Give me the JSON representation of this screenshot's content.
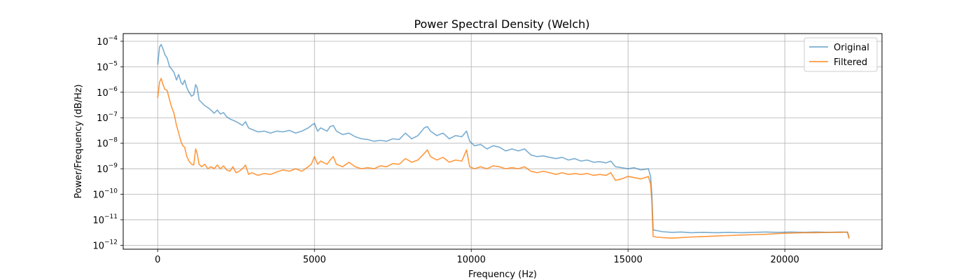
{
  "chart_data": {
    "type": "line",
    "title": "Power Spectral Density (Welch)",
    "xlabel": "Frequency (Hz)",
    "ylabel": "Power/Frequency (dB/Hz)",
    "xlim": [
      -1100,
      23100
    ],
    "ylim": [
      7e-13,
      0.0002
    ],
    "yscale": "log",
    "grid": true,
    "legend": "top-right",
    "xticks": [
      0,
      5000,
      10000,
      15000,
      20000
    ],
    "xtick_labels": [
      "0",
      "5000",
      "10000",
      "15000",
      "20000"
    ],
    "yticks": [
      {
        "base": "10",
        "exp": "−12",
        "value": 1e-12
      },
      {
        "base": "10",
        "exp": "−11",
        "value": 1e-11
      },
      {
        "base": "10",
        "exp": "−10",
        "value": 1e-10
      },
      {
        "base": "10",
        "exp": "−9",
        "value": 1e-09
      },
      {
        "base": "10",
        "exp": "−8",
        "value": 1e-08
      },
      {
        "base": "10",
        "exp": "−7",
        "value": 1e-07
      },
      {
        "base": "10",
        "exp": "−6",
        "value": 1e-06
      },
      {
        "base": "10",
        "exp": "−5",
        "value": 1e-05
      },
      {
        "base": "10",
        "exp": "−4",
        "value": 0.0001
      }
    ],
    "series": [
      {
        "name": "Original",
        "color": "#1f77b4",
        "opacity": 0.6,
        "points": [
          [
            0,
            1.2e-05
          ],
          [
            60,
            6e-05
          ],
          [
            110,
            7.5e-05
          ],
          [
            170,
            5e-05
          ],
          [
            230,
            3e-05
          ],
          [
            300,
            2.2e-05
          ],
          [
            380,
            1e-05
          ],
          [
            450,
            8e-06
          ],
          [
            520,
            6e-06
          ],
          [
            600,
            3e-06
          ],
          [
            670,
            5e-06
          ],
          [
            740,
            2.5e-06
          ],
          [
            800,
            2e-06
          ],
          [
            860,
            3e-06
          ],
          [
            930,
            1.5e-06
          ],
          [
            1000,
            1e-06
          ],
          [
            1080,
            7e-07
          ],
          [
            1150,
            8e-07
          ],
          [
            1210,
            2e-06
          ],
          [
            1260,
            1.5e-06
          ],
          [
            1320,
            5e-07
          ],
          [
            1400,
            4e-07
          ],
          [
            1500,
            3e-07
          ],
          [
            1600,
            2.5e-07
          ],
          [
            1700,
            2e-07
          ],
          [
            1800,
            1.5e-07
          ],
          [
            1900,
            2e-07
          ],
          [
            2000,
            1.4e-07
          ],
          [
            2100,
            1.6e-07
          ],
          [
            2200,
            1.1e-07
          ],
          [
            2300,
            9e-08
          ],
          [
            2400,
            8e-08
          ],
          [
            2500,
            7e-08
          ],
          [
            2600,
            6e-08
          ],
          [
            2700,
            5e-08
          ],
          [
            2800,
            7e-08
          ],
          [
            2900,
            4e-08
          ],
          [
            3000,
            3.5e-08
          ],
          [
            3200,
            2.8e-08
          ],
          [
            3400,
            3e-08
          ],
          [
            3600,
            2.5e-08
          ],
          [
            3800,
            3e-08
          ],
          [
            4000,
            2.8e-08
          ],
          [
            4200,
            3.2e-08
          ],
          [
            4400,
            2.5e-08
          ],
          [
            4600,
            3e-08
          ],
          [
            4800,
            4e-08
          ],
          [
            4900,
            5e-08
          ],
          [
            5000,
            6e-08
          ],
          [
            5100,
            3e-08
          ],
          [
            5200,
            4e-08
          ],
          [
            5400,
            3e-08
          ],
          [
            5500,
            4.5e-08
          ],
          [
            5600,
            5e-08
          ],
          [
            5700,
            3e-08
          ],
          [
            5900,
            2.2e-08
          ],
          [
            6100,
            2.5e-08
          ],
          [
            6300,
            1.8e-08
          ],
          [
            6500,
            1.5e-08
          ],
          [
            6700,
            1.4e-08
          ],
          [
            6900,
            1.2e-08
          ],
          [
            7100,
            1.3e-08
          ],
          [
            7300,
            1.2e-08
          ],
          [
            7500,
            1.5e-08
          ],
          [
            7700,
            1.4e-08
          ],
          [
            7900,
            2.5e-08
          ],
          [
            8100,
            1.5e-08
          ],
          [
            8300,
            2e-08
          ],
          [
            8500,
            4e-08
          ],
          [
            8600,
            4.5e-08
          ],
          [
            8700,
            3e-08
          ],
          [
            8900,
            2e-08
          ],
          [
            9100,
            2.5e-08
          ],
          [
            9300,
            1.5e-08
          ],
          [
            9500,
            2e-08
          ],
          [
            9700,
            1.8e-08
          ],
          [
            9850,
            3e-08
          ],
          [
            9950,
            1.2e-08
          ],
          [
            10100,
            8e-09
          ],
          [
            10300,
            9e-09
          ],
          [
            10500,
            6e-09
          ],
          [
            10700,
            8e-09
          ],
          [
            10900,
            7e-09
          ],
          [
            11100,
            5e-09
          ],
          [
            11300,
            6e-09
          ],
          [
            11500,
            5e-09
          ],
          [
            11700,
            6e-09
          ],
          [
            11900,
            3.5e-09
          ],
          [
            12100,
            3e-09
          ],
          [
            12300,
            3.2e-09
          ],
          [
            12500,
            2.8e-09
          ],
          [
            12700,
            2.5e-09
          ],
          [
            12900,
            2.8e-09
          ],
          [
            13100,
            2.2e-09
          ],
          [
            13300,
            2.5e-09
          ],
          [
            13500,
            2e-09
          ],
          [
            13700,
            2.2e-09
          ],
          [
            13900,
            1.8e-09
          ],
          [
            14100,
            1.9e-09
          ],
          [
            14300,
            1.7e-09
          ],
          [
            14450,
            2e-09
          ],
          [
            14600,
            1.2e-09
          ],
          [
            14800,
            1.1e-09
          ],
          [
            15000,
            1e-09
          ],
          [
            15200,
            1.1e-09
          ],
          [
            15400,
            9e-10
          ],
          [
            15550,
            9.5e-10
          ],
          [
            15650,
            1e-09
          ],
          [
            15720,
            5e-10
          ],
          [
            15760,
            1e-10
          ],
          [
            15800,
            4e-12
          ],
          [
            15900,
            3.8e-12
          ],
          [
            16100,
            3.4e-12
          ],
          [
            16400,
            3.2e-12
          ],
          [
            16700,
            3.3e-12
          ],
          [
            17000,
            3.1e-12
          ],
          [
            17400,
            3.2e-12
          ],
          [
            17800,
            3.1e-12
          ],
          [
            18200,
            3.2e-12
          ],
          [
            18600,
            3.1e-12
          ],
          [
            19000,
            3.2e-12
          ],
          [
            19400,
            3.3e-12
          ],
          [
            19800,
            3.2e-12
          ],
          [
            20200,
            3.3e-12
          ],
          [
            20600,
            3.2e-12
          ],
          [
            21000,
            3.3e-12
          ],
          [
            21400,
            3.2e-12
          ],
          [
            21800,
            3.3e-12
          ],
          [
            22000,
            3.2e-12
          ],
          [
            22050,
            2e-12
          ]
        ]
      },
      {
        "name": "Filtered",
        "color": "#ff7f0e",
        "opacity": 0.8,
        "points": [
          [
            0,
            6e-07
          ],
          [
            60,
            2.5e-06
          ],
          [
            110,
            3.5e-06
          ],
          [
            170,
            2e-06
          ],
          [
            230,
            1.3e-06
          ],
          [
            300,
            1.2e-06
          ],
          [
            380,
            5e-07
          ],
          [
            450,
            2.5e-07
          ],
          [
            520,
            1.5e-07
          ],
          [
            600,
            5e-08
          ],
          [
            670,
            2.5e-08
          ],
          [
            740,
            1.2e-08
          ],
          [
            800,
            8e-09
          ],
          [
            860,
            7e-09
          ],
          [
            930,
            3e-09
          ],
          [
            1000,
            2e-09
          ],
          [
            1080,
            1.5e-09
          ],
          [
            1150,
            1.4e-09
          ],
          [
            1210,
            6e-09
          ],
          [
            1260,
            4e-09
          ],
          [
            1320,
            1.5e-09
          ],
          [
            1400,
            1.2e-09
          ],
          [
            1500,
            1.5e-09
          ],
          [
            1600,
            1e-09
          ],
          [
            1700,
            1.2e-09
          ],
          [
            1800,
            1e-09
          ],
          [
            1900,
            1.4e-09
          ],
          [
            2000,
            1e-09
          ],
          [
            2100,
            1.3e-09
          ],
          [
            2200,
            9e-10
          ],
          [
            2300,
            8e-10
          ],
          [
            2400,
            1.2e-09
          ],
          [
            2500,
            7e-10
          ],
          [
            2600,
            8e-10
          ],
          [
            2700,
            1e-09
          ],
          [
            2800,
            1.4e-09
          ],
          [
            2900,
            6e-10
          ],
          [
            3000,
            7e-10
          ],
          [
            3200,
            5.5e-10
          ],
          [
            3400,
            6.5e-10
          ],
          [
            3600,
            6e-10
          ],
          [
            3800,
            7.5e-10
          ],
          [
            4000,
            9e-10
          ],
          [
            4200,
            8e-10
          ],
          [
            4400,
            1e-09
          ],
          [
            4600,
            8e-10
          ],
          [
            4800,
            1.2e-09
          ],
          [
            4900,
            1.5e-09
          ],
          [
            5000,
            3e-09
          ],
          [
            5100,
            1.5e-09
          ],
          [
            5200,
            2e-09
          ],
          [
            5400,
            1.5e-09
          ],
          [
            5500,
            2.2e-09
          ],
          [
            5600,
            3e-09
          ],
          [
            5700,
            1.5e-09
          ],
          [
            5900,
            1.2e-09
          ],
          [
            6100,
            1.8e-09
          ],
          [
            6300,
            1.2e-09
          ],
          [
            6500,
            1e-09
          ],
          [
            6700,
            1.1e-09
          ],
          [
            6900,
            1e-09
          ],
          [
            7100,
            1.3e-09
          ],
          [
            7300,
            1.2e-09
          ],
          [
            7500,
            1.6e-09
          ],
          [
            7700,
            1.5e-09
          ],
          [
            7900,
            2.5e-09
          ],
          [
            8100,
            1.8e-09
          ],
          [
            8300,
            2.2e-09
          ],
          [
            8500,
            4e-09
          ],
          [
            8600,
            5.5e-09
          ],
          [
            8700,
            3e-09
          ],
          [
            8900,
            2.2e-09
          ],
          [
            9100,
            2.8e-09
          ],
          [
            9300,
            1.8e-09
          ],
          [
            9500,
            2.2e-09
          ],
          [
            9700,
            2e-09
          ],
          [
            9850,
            5.5e-09
          ],
          [
            9950,
            1.2e-09
          ],
          [
            10100,
            1e-09
          ],
          [
            10300,
            1.2e-09
          ],
          [
            10500,
            1e-09
          ],
          [
            10700,
            1.3e-09
          ],
          [
            10900,
            1.2e-09
          ],
          [
            11100,
            1e-09
          ],
          [
            11300,
            1.1e-09
          ],
          [
            11500,
            1e-09
          ],
          [
            11700,
            1.2e-09
          ],
          [
            11900,
            8e-10
          ],
          [
            12100,
            7e-10
          ],
          [
            12300,
            8e-10
          ],
          [
            12500,
            7e-10
          ],
          [
            12700,
            6e-10
          ],
          [
            12900,
            7e-10
          ],
          [
            13100,
            6e-10
          ],
          [
            13300,
            6.5e-10
          ],
          [
            13500,
            6e-10
          ],
          [
            13700,
            6.5e-10
          ],
          [
            13900,
            5.5e-10
          ],
          [
            14100,
            6e-10
          ],
          [
            14300,
            5.5e-10
          ],
          [
            14450,
            7e-10
          ],
          [
            14600,
            3.5e-10
          ],
          [
            14800,
            4e-10
          ],
          [
            15000,
            5e-10
          ],
          [
            15200,
            4.5e-10
          ],
          [
            15400,
            4e-10
          ],
          [
            15550,
            4.5e-10
          ],
          [
            15650,
            5e-10
          ],
          [
            15720,
            2.5e-10
          ],
          [
            15760,
            5e-11
          ],
          [
            15800,
            2.2e-12
          ],
          [
            15900,
            2.1e-12
          ],
          [
            16100,
            2e-12
          ],
          [
            16400,
            1.9e-12
          ],
          [
            16700,
            2e-12
          ],
          [
            17000,
            2.1e-12
          ],
          [
            17400,
            2.2e-12
          ],
          [
            17800,
            2.3e-12
          ],
          [
            18200,
            2.4e-12
          ],
          [
            18600,
            2.5e-12
          ],
          [
            19000,
            2.6e-12
          ],
          [
            19400,
            2.7e-12
          ],
          [
            19800,
            2.9e-12
          ],
          [
            20200,
            3e-12
          ],
          [
            20600,
            3.1e-12
          ],
          [
            21000,
            3.1e-12
          ],
          [
            21400,
            3.2e-12
          ],
          [
            21800,
            3.2e-12
          ],
          [
            22000,
            3.3e-12
          ],
          [
            22050,
            1.8e-12
          ]
        ]
      }
    ]
  }
}
